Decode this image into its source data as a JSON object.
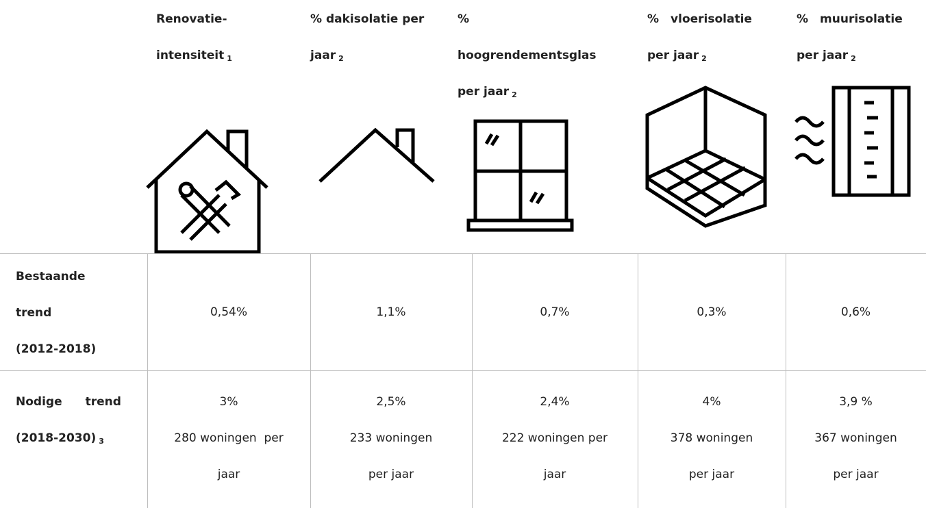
{
  "header": {
    "columns": [
      {
        "lines": [
          "Renovatie-",
          "intensiteit"
        ],
        "sub": "1"
      },
      {
        "lines": [
          "% dakisolatie per",
          "jaar"
        ],
        "sub": "2"
      },
      {
        "lines": [
          "%",
          "hoogrendementsglas",
          "per jaar"
        ],
        "sub": "2"
      },
      {
        "lines": [
          "% vloerisolatie",
          "per jaar"
        ],
        "sub": "2"
      },
      {
        "lines": [
          "% muurisolatie",
          "per jaar"
        ],
        "sub": "2"
      }
    ]
  },
  "table": {
    "rows": [
      {
        "label": {
          "lines": [
            "Bestaande",
            "trend",
            "(2012-2018)"
          ]
        },
        "cells": [
          {
            "lines": [
              "0,54%"
            ]
          },
          {
            "lines": [
              "1,1%"
            ]
          },
          {
            "lines": [
              "0,7%"
            ]
          },
          {
            "lines": [
              "0,3%"
            ]
          },
          {
            "lines": [
              "0,6%"
            ]
          }
        ]
      },
      {
        "label": {
          "lines": [
            "Nodige  trend",
            "(2018-2030)"
          ],
          "sub": "3"
        },
        "cells": [
          {
            "lines": [
              "3%",
              "280 woningen  per",
              "jaar"
            ]
          },
          {
            "lines": [
              "2,5%",
              "233 woningen",
              "per jaar"
            ]
          },
          {
            "lines": [
              "2,4%",
              "222 woningen per",
              "jaar"
            ]
          },
          {
            "lines": [
              "4%",
              "378 woningen",
              "per jaar"
            ]
          },
          {
            "lines": [
              "3,9 %",
              "367 woningen",
              "per jaar"
            ]
          }
        ]
      }
    ]
  }
}
